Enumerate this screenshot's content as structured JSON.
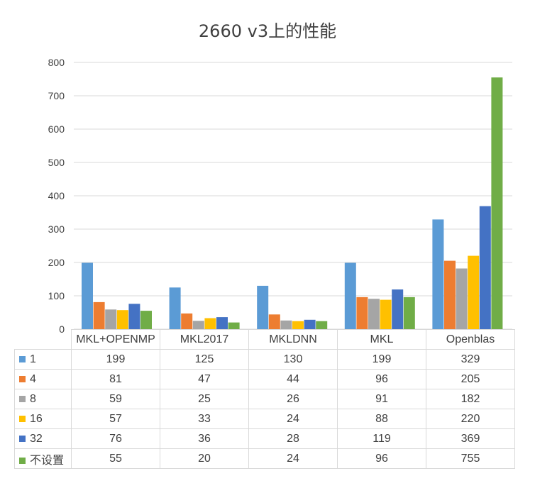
{
  "chart_data": {
    "type": "bar",
    "title": "2660 v3上的性能",
    "categories": [
      "MKL+OPENMP",
      "MKL2017",
      "MKLDNN",
      "MKL",
      "Openblas"
    ],
    "series": [
      {
        "name": "1",
        "color": "#5b9bd5",
        "values": [
          199,
          125,
          130,
          199,
          329
        ]
      },
      {
        "name": "4",
        "color": "#ed7d31",
        "values": [
          81,
          47,
          44,
          96,
          205
        ]
      },
      {
        "name": "8",
        "color": "#a5a5a5",
        "values": [
          59,
          25,
          26,
          91,
          182
        ]
      },
      {
        "name": "16",
        "color": "#ffc000",
        "values": [
          57,
          33,
          24,
          88,
          220
        ]
      },
      {
        "name": "32",
        "color": "#4472c4",
        "values": [
          76,
          36,
          28,
          119,
          369
        ]
      },
      {
        "name": "不设置",
        "color": "#70ad47",
        "values": [
          55,
          20,
          24,
          96,
          755
        ]
      }
    ],
    "ylim": [
      0,
      800
    ],
    "yticks": [
      0,
      100,
      200,
      300,
      400,
      500,
      600,
      700,
      800
    ],
    "grid": true,
    "legend": "data-table-below",
    "xlabel": "",
    "ylabel": ""
  }
}
